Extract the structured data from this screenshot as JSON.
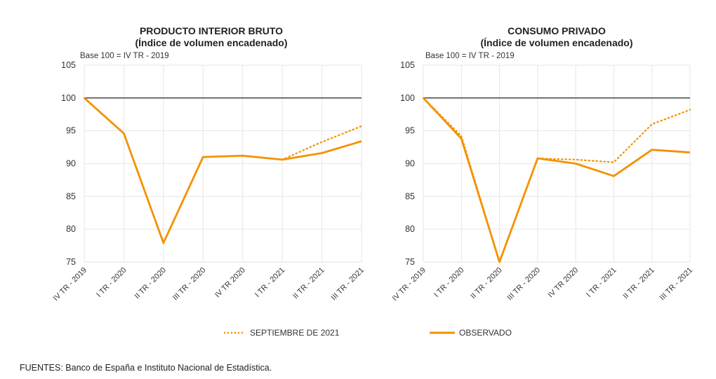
{
  "chart_data": [
    {
      "type": "line",
      "title": "PRODUCTO INTERIOR BRUTO",
      "subtitle": "(Índice de volumen encadenado)",
      "note": "Base 100 = IV TR - 2019",
      "categories": [
        "IV TR - 2019",
        "I TR - 2020",
        "II TR - 2020",
        "III TR - 2020",
        "IV TR 2020",
        "I TR - 2021",
        "II TR - 2021",
        "III TR - 2021"
      ],
      "ylim": [
        75,
        105
      ],
      "yticks": [
        75,
        80,
        85,
        90,
        95,
        100,
        105
      ],
      "reference_line": 100,
      "series": [
        {
          "name": "SEPTIEMBRE DE 2021",
          "style": "dotted",
          "values": [
            100,
            94.6,
            77.9,
            91.0,
            91.2,
            90.6,
            93.3,
            95.7
          ]
        },
        {
          "name": "OBSERVADO",
          "style": "solid",
          "values": [
            100,
            94.6,
            77.9,
            91.0,
            91.2,
            90.6,
            91.6,
            93.4
          ]
        }
      ]
    },
    {
      "type": "line",
      "title": "CONSUMO PRIVADO",
      "subtitle": "(Índice de volumen encadenado)",
      "note": "Base 100 = IV TR - 2019",
      "categories": [
        "IV TR - 2019",
        "I TR - 2020",
        "II TR - 2020",
        "III TR - 2020",
        "IV TR 2020",
        "I TR - 2021",
        "II TR - 2021",
        "III TR - 2021"
      ],
      "ylim": [
        75,
        105
      ],
      "yticks": [
        75,
        80,
        85,
        90,
        95,
        100,
        105
      ],
      "reference_line": 100,
      "series": [
        {
          "name": "SEPTIEMBRE DE 2021",
          "style": "dotted",
          "values": [
            100,
            94.2,
            75.0,
            90.8,
            90.6,
            90.2,
            96.0,
            98.2
          ]
        },
        {
          "name": "OBSERVADO",
          "style": "solid",
          "values": [
            100,
            93.8,
            75.0,
            90.8,
            90.0,
            88.1,
            92.1,
            91.7
          ]
        }
      ]
    }
  ],
  "legend": {
    "forecast": "SEPTIEMBRE DE 2021",
    "observed": "OBSERVADO"
  },
  "source": "FUENTES: Banco de España e Instituto Nacional de Estadística.",
  "colors": {
    "line": "#f39200",
    "grid": "#e6e6e6",
    "ref": "#333333"
  }
}
